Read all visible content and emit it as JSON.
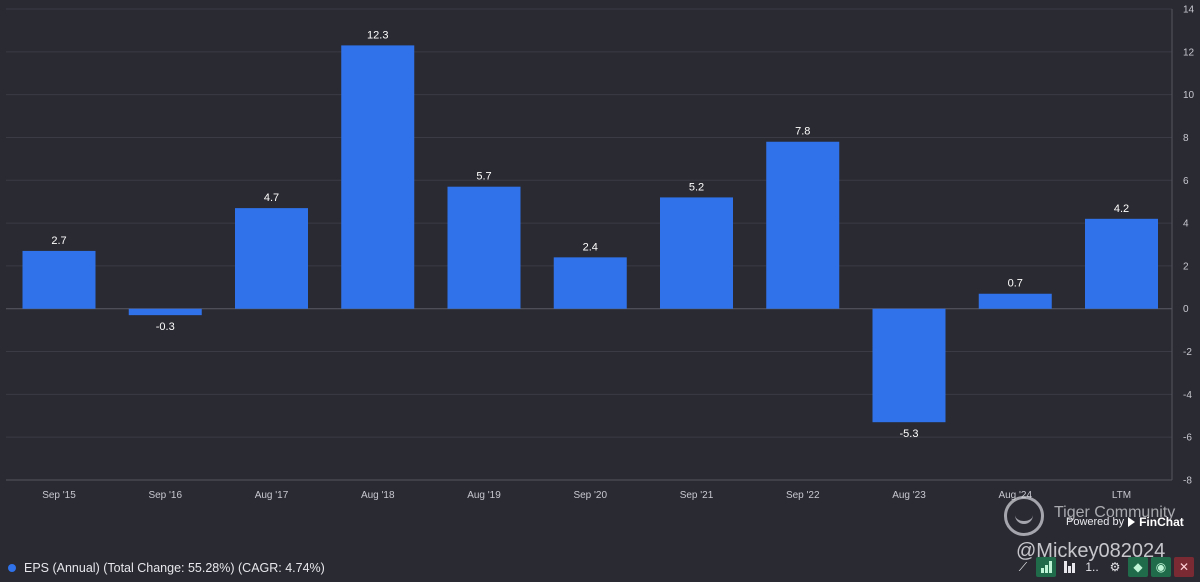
{
  "chart_data": {
    "type": "bar",
    "categories": [
      "Sep '15",
      "Sep '16",
      "Aug '17",
      "Aug '18",
      "Aug '19",
      "Sep '20",
      "Sep '21",
      "Sep '22",
      "Aug '23",
      "Aug '24",
      "LTM"
    ],
    "series": [
      {
        "name": "EPS (Annual)",
        "values": [
          2.7,
          -0.3,
          4.7,
          12.3,
          5.7,
          2.4,
          5.2,
          7.8,
          -5.3,
          0.7,
          4.2
        ]
      }
    ],
    "data_labels": [
      "2.7",
      "-0.3",
      "4.7",
      "12.3",
      "5.7",
      "2.4",
      "5.2",
      "7.8",
      "-5.3",
      "0.7",
      "4.2"
    ],
    "ylim": [
      -8,
      14
    ],
    "yticks": [
      14,
      12,
      10,
      8,
      6,
      4,
      2,
      0,
      -2,
      -4,
      -6,
      -8
    ],
    "y_axis_position": "right",
    "grid": true,
    "bar_color": "#2f72ea",
    "title": "",
    "xlabel": "",
    "ylabel": ""
  },
  "legend": {
    "label": "EPS (Annual) (Total Change: 55.28%) (CAGR: 4.74%)",
    "color": "#2f72ea"
  },
  "watermark": {
    "community": "Tiger Community",
    "powered_by": "Powered by",
    "brand": "FinChat",
    "user": "@Mickey082024"
  },
  "toolbar": {
    "more_label": "1..",
    "icons": [
      "trend-icon",
      "bar-chart-icon",
      "bars-icon",
      "sort-icon",
      "gear-icon",
      "tag-icon",
      "eye-icon",
      "close-icon"
    ]
  },
  "colors": {
    "background": "#2a2a32",
    "grid": "#3b3b45"
  }
}
